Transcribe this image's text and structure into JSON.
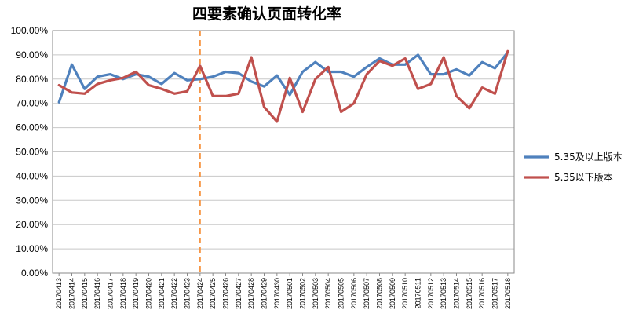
{
  "chart_data": {
    "type": "line",
    "title": "四要素确认页面转化率",
    "xlabel": "",
    "ylabel": "",
    "ylim": [
      0,
      100
    ],
    "y_ticks": [
      "0.00%",
      "10.00%",
      "20.00%",
      "30.00%",
      "40.00%",
      "50.00%",
      "60.00%",
      "70.00%",
      "80.00%",
      "90.00%",
      "100.00%"
    ],
    "grid": "horizontal",
    "legend_position": "right",
    "categories": [
      "20170413",
      "20170414",
      "20170415",
      "20170416",
      "20170417",
      "20170418",
      "20170419",
      "20170420",
      "20170421",
      "20170422",
      "20170423",
      "20170424",
      "20170425",
      "20170426",
      "20170427",
      "20170428",
      "20170429",
      "20170430",
      "20170501",
      "20170502",
      "20170503",
      "20170504",
      "20170505",
      "20170506",
      "20170507",
      "20170508",
      "20170509",
      "20170510",
      "20170511",
      "20170512",
      "20170513",
      "20170514",
      "20170515",
      "20170516",
      "20170517",
      "20170518"
    ],
    "series": [
      {
        "name": "5.35及以上版本",
        "color": "#4f81bd",
        "values": [
          70.5,
          86,
          76,
          81,
          82,
          80,
          82,
          81,
          78,
          82.5,
          79.5,
          80,
          81,
          83,
          82.5,
          79,
          77,
          81.5,
          73.5,
          83,
          87,
          83,
          83,
          81,
          85,
          88.5,
          86,
          86,
          90,
          82,
          82,
          84,
          81.5,
          87,
          84.5,
          91
        ]
      },
      {
        "name": "5.35以下版本",
        "color": "#c0504d",
        "values": [
          77.5,
          74.5,
          74,
          78,
          79.5,
          80.5,
          83,
          77.5,
          76,
          74,
          75,
          85.5,
          73,
          73,
          74,
          89,
          68.5,
          62.5,
          80.5,
          66.5,
          80,
          85,
          66.5,
          70,
          82,
          87.5,
          85.5,
          88.5,
          76,
          78,
          89,
          73,
          68,
          76.5,
          74,
          91.5
        ]
      }
    ],
    "annotations": [
      {
        "type": "vertical-dashed-line",
        "at": "20170424",
        "color": "#f79646"
      }
    ]
  }
}
